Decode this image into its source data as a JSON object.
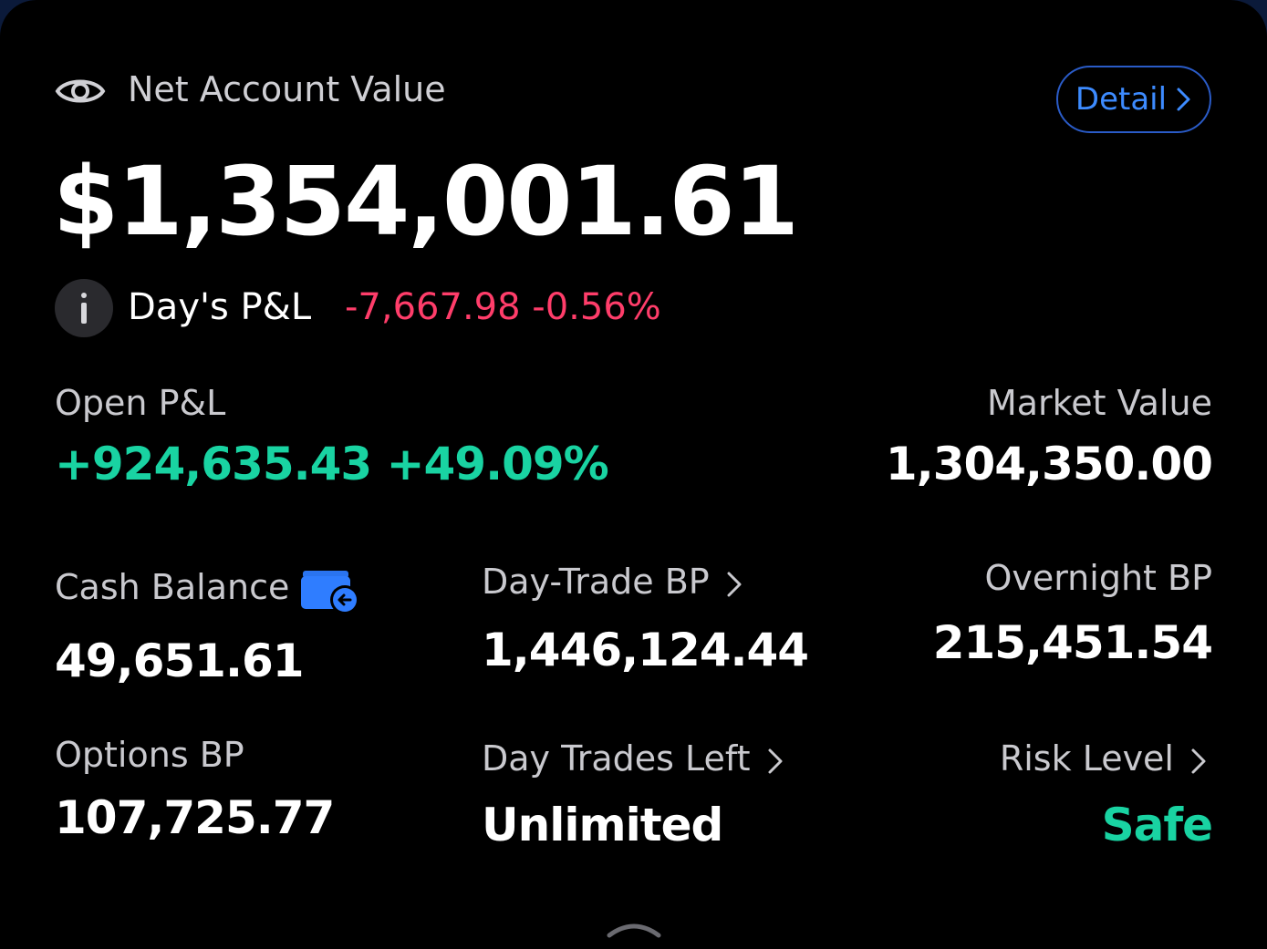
{
  "header": {
    "title": "Net Account Value",
    "detail_label": "Detail",
    "total_value": "$1,354,001.61"
  },
  "days_pl": {
    "label": "Day's P&L",
    "value": "-7,667.98 -0.56%"
  },
  "metrics": {
    "open_pl": {
      "label": "Open P&L",
      "value": "+924,635.43 +49.09%"
    },
    "market_value": {
      "label": "Market Value",
      "value": "1,304,350.00"
    },
    "cash_balance": {
      "label": "Cash Balance",
      "value": "49,651.61"
    },
    "day_trade_bp": {
      "label": "Day-Trade BP",
      "value": "1,446,124.44"
    },
    "overnight_bp": {
      "label": "Overnight BP",
      "value": "215,451.54"
    },
    "options_bp": {
      "label": "Options BP",
      "value": "107,725.77"
    },
    "day_trades_left": {
      "label": "Day Trades Left",
      "value": "Unlimited"
    },
    "risk_level": {
      "label": "Risk Level",
      "value": "Safe"
    }
  },
  "icons": {
    "eye": "eye-icon",
    "info": "info-icon",
    "wallet": "wallet-transfer-icon",
    "chevron": "chevron-right-icon",
    "handle": "chevron-up-icon"
  },
  "colors": {
    "negative": "#ff3d6a",
    "positive": "#19d3a2",
    "accent": "#3d8bff"
  }
}
